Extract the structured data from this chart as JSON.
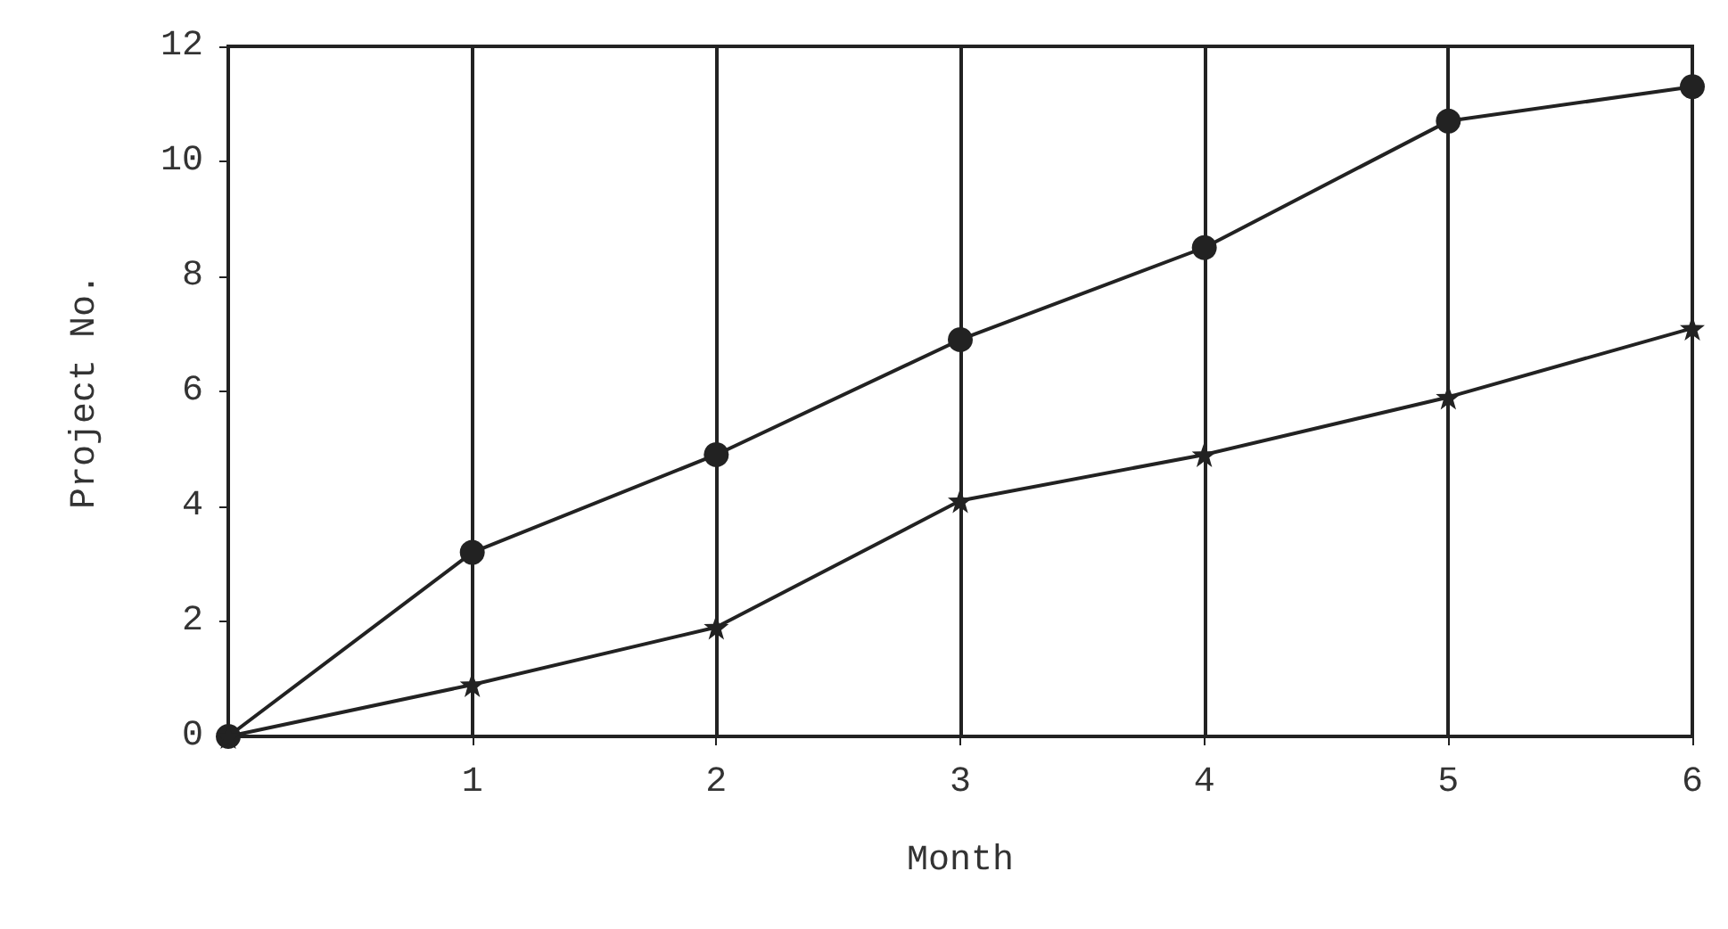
{
  "chart_data": {
    "type": "line",
    "xlabel": "Month",
    "ylabel": "Project No.",
    "x": [
      0,
      1,
      2,
      3,
      4,
      5,
      6
    ],
    "series": [
      {
        "color": "#222222",
        "marker": "circle",
        "values": [
          0,
          3.2,
          4.9,
          6.9,
          8.5,
          10.7,
          11.3
        ]
      },
      {
        "color": "#222222",
        "marker": "star",
        "values": [
          0,
          0.9,
          1.9,
          4.1,
          4.9,
          5.9,
          7.1
        ]
      }
    ],
    "xlim": [
      0,
      6
    ],
    "xticks": [
      {
        "value": 0,
        "label": null
      },
      1,
      2,
      3,
      4,
      5,
      6
    ],
    "ylim": [
      0,
      12
    ],
    "yticks": [
      0,
      2,
      4,
      6,
      8,
      10,
      12
    ],
    "grid": "x",
    "line_style": "solid"
  }
}
